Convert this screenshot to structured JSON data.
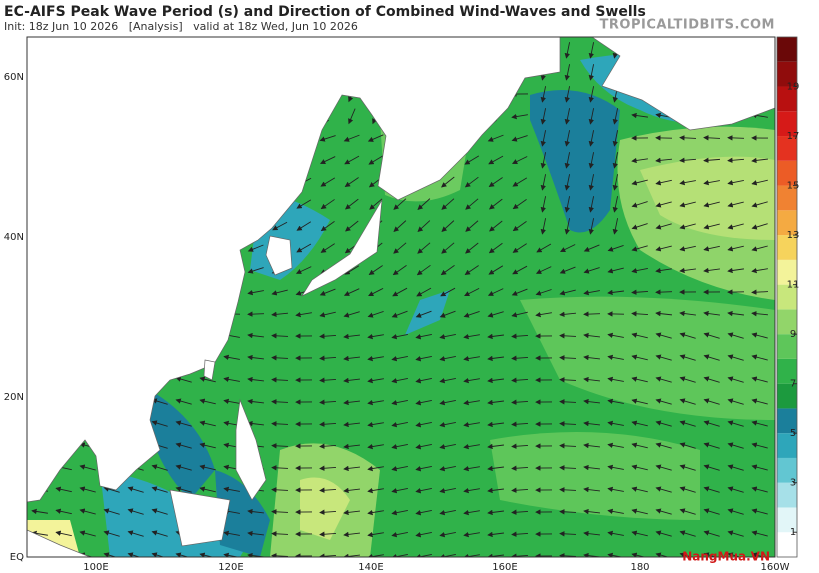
{
  "header": {
    "title": "EC-AIFS Peak Wave Period (s) and Direction of Combined Wind-Waves and Swells",
    "init": "Init: 18z Jun 10 2026   [Analysis]   valid at 18z Wed, Jun 10 2026",
    "site": "TROPICALTIDBITS.COM"
  },
  "map": {
    "lat_labels": [
      "60N",
      "40N",
      "20N",
      "EQ"
    ],
    "lon_labels": [
      "100E",
      "120E",
      "140E",
      "160E",
      "180",
      "160W"
    ]
  },
  "colorbar": {
    "range": [
      0,
      21
    ],
    "ticks": [
      1,
      3,
      5,
      7,
      9,
      11,
      13,
      15,
      17,
      19
    ],
    "colors": [
      "#ffffff",
      "#e2f6f8",
      "#a6e0e8",
      "#62c6d2",
      "#2ea6ba",
      "#1b7f9b",
      "#1c9a3e",
      "#30b24a",
      "#5ec65a",
      "#92d56a",
      "#c8e77c",
      "#f3f39a",
      "#f6d35c",
      "#f4aa42",
      "#f08232",
      "#ec5c26",
      "#e43220",
      "#d61a18",
      "#b81010",
      "#900c0c",
      "#6a0808"
    ]
  },
  "watermark": "NangMua.VN"
}
